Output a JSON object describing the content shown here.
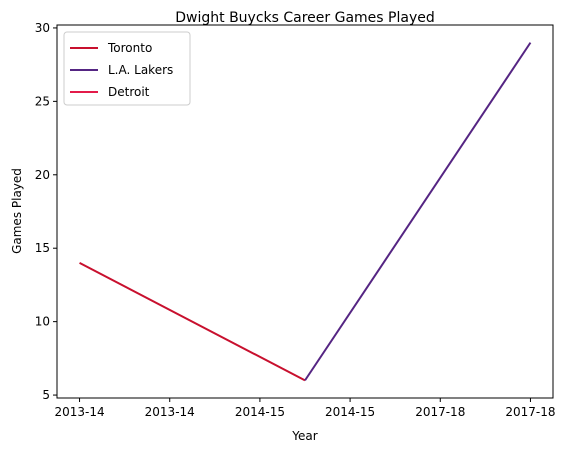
{
  "chart_data": {
    "type": "line",
    "title": "Dwight Buycks Career Games Played",
    "xlabel": "Year",
    "ylabel": "Games Played",
    "x_ticks": [
      "2013-14",
      "2013-14",
      "2014-15",
      "2014-15",
      "2017-18",
      "2017-18"
    ],
    "ylim": [
      4.8,
      30.2
    ],
    "y_ticks": [
      5,
      10,
      15,
      20,
      25,
      30
    ],
    "grid": false,
    "legend_position": "top-left",
    "series": [
      {
        "name": "Toronto",
        "color": "#c8102e",
        "points": [
          {
            "x": 0,
            "y": 14
          },
          {
            "x": 2.5,
            "y": 6
          }
        ]
      },
      {
        "name": "L.A. Lakers",
        "color": "#552583",
        "points": [
          {
            "x": 2.5,
            "y": 6
          },
          {
            "x": 5,
            "y": 29
          }
        ]
      },
      {
        "name": "Detroit",
        "color": "#e31b4a",
        "points": []
      }
    ]
  }
}
